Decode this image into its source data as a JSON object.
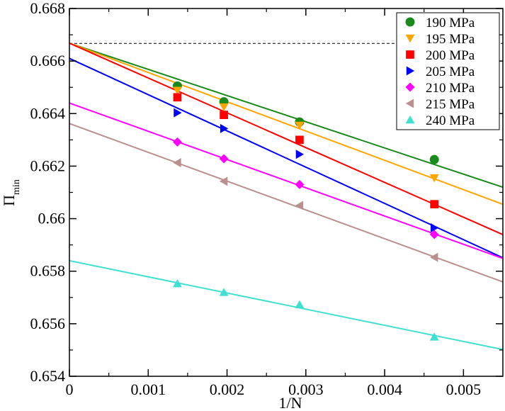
{
  "chart_data": {
    "type": "scatter",
    "xlabel": "1/N",
    "ylabel": "Π",
    "ylabel_sub": "min",
    "xlim": [
      0,
      0.0055
    ],
    "ylim": [
      0.654,
      0.668
    ],
    "x_ticks": [
      0,
      0.001,
      0.002,
      0.003,
      0.004,
      0.005
    ],
    "x_tick_labels": [
      "0",
      "0.001",
      "0.002",
      "0.003",
      "0.004",
      "0.005"
    ],
    "y_ticks": [
      0.654,
      0.656,
      0.658,
      0.66,
      0.662,
      0.664,
      0.666,
      0.668
    ],
    "y_tick_labels": [
      "0.654",
      "0.656",
      "0.658",
      "0.66",
      "0.662",
      "0.664",
      "0.666",
      "0.668"
    ],
    "reference_line": {
      "y": 0.66667,
      "style": "dashed",
      "color": "#000000"
    },
    "legend_position": "top-right",
    "x": [
      0.00137,
      0.00196,
      0.00292,
      0.00463
    ],
    "series": [
      {
        "name": "190 MPa",
        "marker": "circle",
        "color": "#1a8a1a",
        "values": [
          0.66505,
          0.66445,
          0.66368,
          0.66225
        ],
        "fit": {
          "intercept": 0.66668,
          "slope": -0.997
        }
      },
      {
        "name": "195 MPa",
        "marker": "triangle-down",
        "color": "#ffa500",
        "values": [
          0.66488,
          0.66425,
          0.66355,
          0.66155
        ],
        "fit": {
          "intercept": 0.66668,
          "slope": -1.115
        }
      },
      {
        "name": "200 MPa",
        "marker": "square",
        "color": "#ff0000",
        "values": [
          0.66462,
          0.66395,
          0.663,
          0.66055
        ],
        "fit": {
          "intercept": 0.66668,
          "slope": -1.325
        }
      },
      {
        "name": "205 MPa",
        "marker": "triangle-right",
        "color": "#0000ff",
        "values": [
          0.66403,
          0.66343,
          0.66245,
          0.65965
        ],
        "fit": {
          "intercept": 0.6661,
          "slope": -1.38
        }
      },
      {
        "name": "210 MPa",
        "marker": "diamond",
        "color": "#ff00ff",
        "values": [
          0.66292,
          0.66228,
          0.6613,
          0.6594
        ],
        "fit": {
          "intercept": 0.6644,
          "slope": -1.075
        }
      },
      {
        "name": "215 MPa",
        "marker": "triangle-left",
        "color": "#bc8f8f",
        "values": [
          0.66213,
          0.66142,
          0.6605,
          0.65853
        ],
        "fit": {
          "intercept": 0.66362,
          "slope": -1.096
        }
      },
      {
        "name": "240 MPa",
        "marker": "triangle-up",
        "color": "#40e0d0",
        "values": [
          0.65753,
          0.6572,
          0.65673,
          0.6555
        ],
        "fit": {
          "intercept": 0.6584,
          "slope": -0.615
        }
      }
    ]
  }
}
